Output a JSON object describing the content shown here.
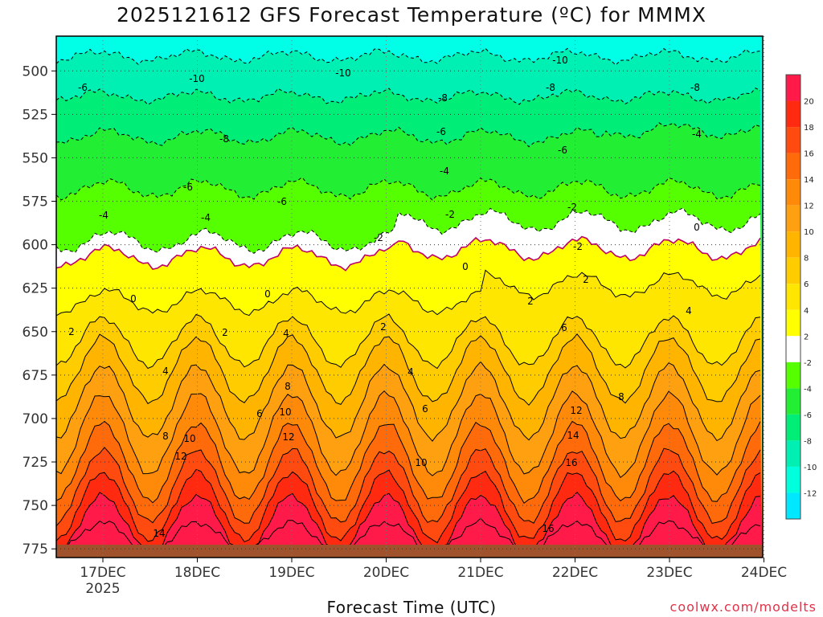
{
  "chart_data": {
    "type": "heatmap",
    "title": "2025121612 GFS Forecast Temperature (ºC) for MMMX",
    "xlabel": "Forecast Time (UTC)",
    "ylabel": "",
    "x_ticks": [
      "17DEC",
      "18DEC",
      "19DEC",
      "20DEC",
      "21DEC",
      "22DEC",
      "23DEC",
      "24DEC"
    ],
    "x_year_label": "2025",
    "y_ticks": [
      500,
      525,
      550,
      575,
      600,
      625,
      650,
      675,
      700,
      725,
      750,
      775
    ],
    "ylim": [
      780,
      480
    ],
    "units": "ºC",
    "colorbar": {
      "levels": [
        20,
        18,
        16,
        14,
        12,
        10,
        8,
        6,
        4,
        2,
        -2,
        -4,
        -6,
        -8,
        -10,
        -12
      ],
      "colors": [
        "#ff1a4a",
        "#ff2a10",
        "#ff4a10",
        "#ff6a0a",
        "#ff8a0a",
        "#ffa010",
        "#ffb400",
        "#ffcc00",
        "#ffe600",
        "#ffff00",
        "#ffffff",
        "#55ff00",
        "#22ee33",
        "#00ee77",
        "#00f0b4",
        "#00ffdd",
        "#00e8ff"
      ]
    },
    "grid": true,
    "contour_labels": [
      "-10",
      "-10",
      "-10",
      "-8",
      "-8",
      "-8",
      "-8",
      "-6",
      "-6",
      "-6",
      "-6",
      "-6",
      "-4",
      "-4",
      "-4",
      "-4",
      "-2",
      "-2",
      "-2",
      "-2",
      "0",
      "0",
      "0",
      "0",
      "2",
      "2",
      "2",
      "2",
      "2",
      "4",
      "4",
      "4",
      "4",
      "6",
      "6",
      "6",
      "8",
      "8",
      "8",
      "10",
      "10",
      "10",
      "12",
      "12",
      "12",
      "14",
      "14",
      "16",
      "16"
    ]
  },
  "watermark": "coolwx.com/modelts",
  "colors": {
    "ground": "#a0522d",
    "zero_line": "#c0006a",
    "frame": "#000000"
  }
}
